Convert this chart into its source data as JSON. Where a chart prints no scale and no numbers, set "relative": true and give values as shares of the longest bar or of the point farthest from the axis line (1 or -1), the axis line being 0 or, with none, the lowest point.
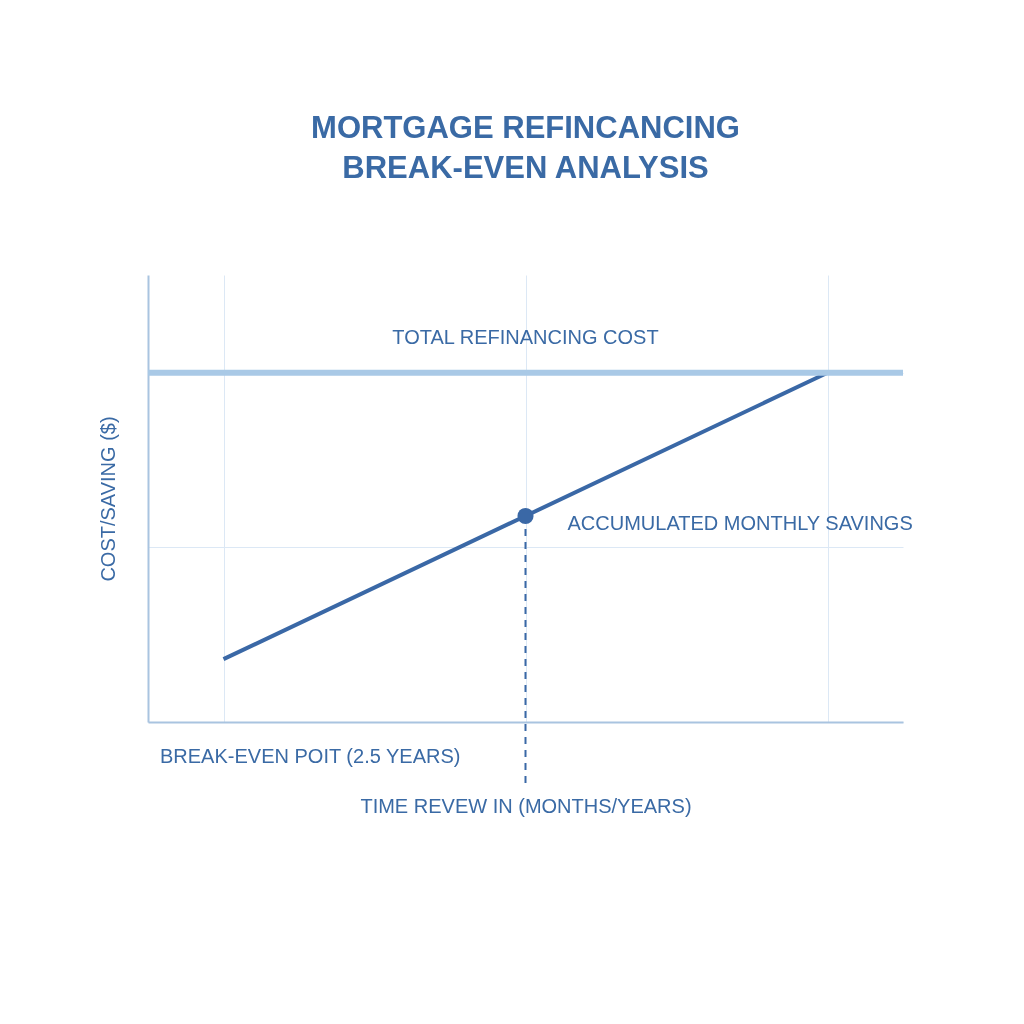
{
  "chart_data": {
    "type": "line",
    "title": "MORTGAGE REFINCANCING\nBREAK-EVEN ANALYSIS",
    "xlabel": "TIME REVEW IN (MONTHS/YEARS)",
    "ylabel": "COST/SAVING ($)",
    "categories": [
      null,
      null,
      null
    ],
    "relative": true,
    "grid": true,
    "legend": false,
    "marker": "none",
    "line_style": "solid",
    "series": [
      {
        "name": "ACCUMULATED MONTHLY SAVINGS",
        "color": "#3a68a6",
        "values": [
          0.18,
          0.59,
          1
        ]
      }
    ],
    "ref_lines": [
      {
        "axis": "y",
        "value": 1,
        "label": "TOTAL REFINANCING COST",
        "color": "#a9c9e6",
        "line_style": "solid"
      }
    ],
    "annotations": [
      "BREAK-EVEN POIT (2.5 YEARS)"
    ]
  }
}
